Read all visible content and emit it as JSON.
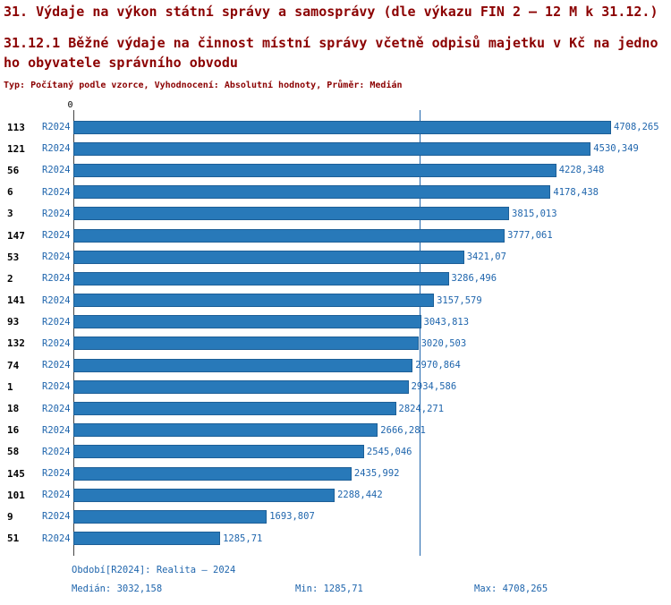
{
  "title": "31. Výdaje na výkon státní správy a samosprávy (dle výkazu FIN 2 – 12 M k 31.12.)",
  "subtitle_line1": "31.12.1 Běžné výdaje na činnost místní správy včetně odpisů majetku v Kč na jedno",
  "subtitle_line2": "ho obyvatele správního obvodu",
  "meta": "Typ: Počítaný podle vzorce, Vyhodnocení: Absolutní hodnoty, Průměr: Medián",
  "chart_data": {
    "type": "bar",
    "orientation": "horizontal",
    "origin_label": "0",
    "series": "R2024",
    "xlim": [
      0,
      4708.265
    ],
    "median": 3032.158,
    "bar_color": "#2879b9",
    "bar_border_color": "#1d5f97",
    "grid": false,
    "categories": [
      "113",
      "121",
      "56",
      "6",
      "3",
      "147",
      "53",
      "2",
      "141",
      "93",
      "132",
      "74",
      "1",
      "18",
      "16",
      "58",
      "145",
      "101",
      "9",
      "51"
    ],
    "values": [
      4708.265,
      4530.349,
      4228.348,
      4178.438,
      3815.013,
      3777.061,
      3421.07,
      3286.496,
      3157.579,
      3043.813,
      3020.503,
      2970.864,
      2934.586,
      2824.271,
      2666.281,
      2545.046,
      2435.992,
      2288.442,
      1693.807,
      1285.71
    ],
    "value_labels": [
      "4708,265",
      "4530,349",
      "4228,348",
      "4178,438",
      "3815,013",
      "3777,061",
      "3421,07",
      "3286,496",
      "3157,579",
      "3043,813",
      "3020,503",
      "2970,864",
      "2934,586",
      "2824,271",
      "2666,281",
      "2545,046",
      "2435,992",
      "2288,442",
      "1693,807",
      "1285,71"
    ]
  },
  "footer": {
    "period": "Období[R2024]: Realita – 2024",
    "median": "Medián: 3032,158",
    "min": "Min: 1285,71",
    "max": "Max: 4708,265"
  },
  "colors": {
    "title": "#8b0000",
    "text_blue": "#2066ad"
  }
}
